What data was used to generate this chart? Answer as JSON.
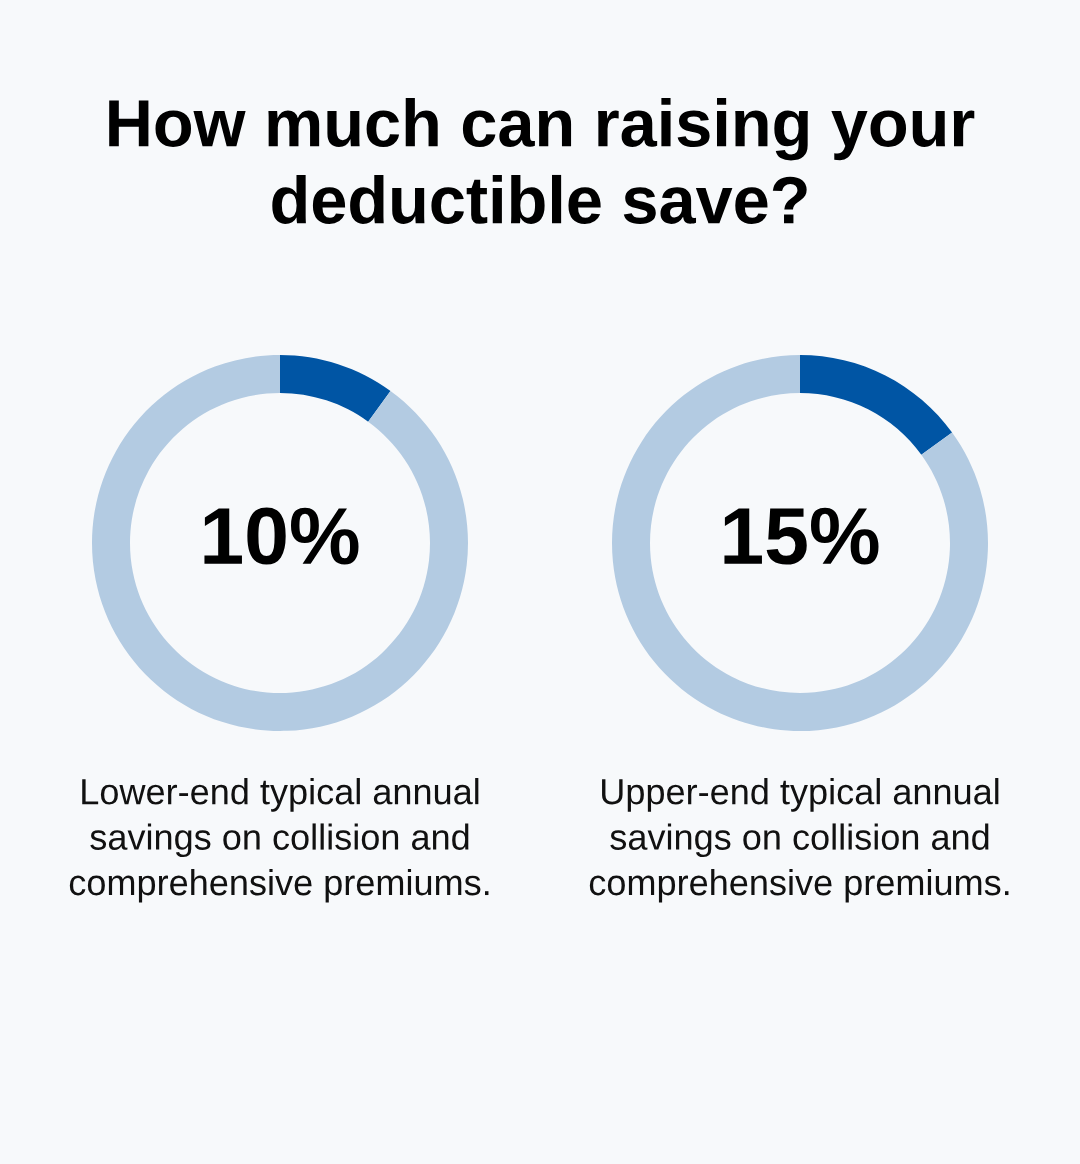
{
  "chart_data": [
    {
      "type": "donut",
      "title": "How much can raising your deductible save?",
      "categories": [
        null,
        null
      ],
      "values": [
        10,
        90
      ],
      "colors": [
        "#0055a4",
        "#b3cbe2"
      ],
      "value_labels": [
        "10%",
        null
      ],
      "annotations": [
        "Lower-end typical annual\nsavings on collision and\ncomprehensive premiums."
      ]
    },
    {
      "type": "donut",
      "categories": [
        null,
        null
      ],
      "values": [
        15,
        85
      ],
      "colors": [
        "#0055a4",
        "#b3cbe2"
      ],
      "value_labels": [
        "15%",
        null
      ],
      "annotations": [
        "Upper-end typical annual\nsavings on collision and\ncomprehensive premiums."
      ]
    }
  ]
}
